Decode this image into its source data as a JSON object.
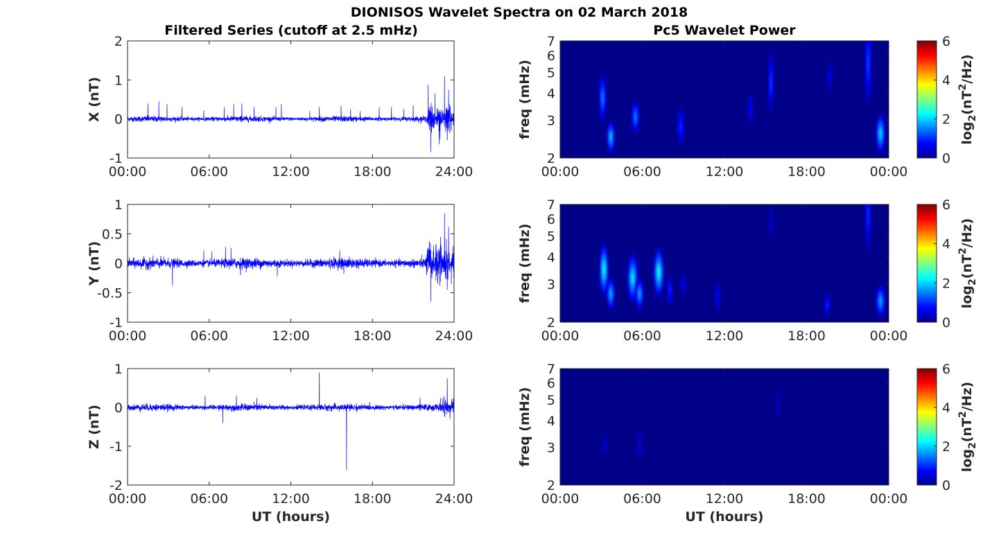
{
  "figure": {
    "title": "DIONISOS Wavelet Spectra on 02 March 2018",
    "left_title": "Filtered Series (cutoff at 2.5 mHz)",
    "right_title": "Pc5 Wavelet Power"
  },
  "chart_data": [
    {
      "type": "line",
      "panel": "X",
      "ylabel": "X (nT)",
      "xlabel": "",
      "xlim": [
        0,
        24
      ],
      "ylim": [
        -1,
        2
      ],
      "yticks": [
        -1,
        0,
        1,
        2
      ],
      "ytick_labels": [
        "-1",
        "0",
        "1",
        "2"
      ],
      "xticks": [
        0,
        6,
        12,
        18,
        24
      ],
      "xtick_labels": [
        "00:00",
        "06:00",
        "12:00",
        "18:00",
        "24:00"
      ],
      "color": "#0000ff",
      "noise_amplitude": 0.05,
      "spikes": [
        [
          1.5,
          0.4
        ],
        [
          2.3,
          0.45
        ],
        [
          2.9,
          0.38
        ],
        [
          4.0,
          0.3
        ],
        [
          5.6,
          0.22
        ],
        [
          7.1,
          0.3
        ],
        [
          7.8,
          0.38
        ],
        [
          8.4,
          0.4
        ],
        [
          9.3,
          0.3
        ],
        [
          10.9,
          0.3
        ],
        [
          11.3,
          0.38
        ],
        [
          13.4,
          0.2
        ],
        [
          14.1,
          0.3
        ],
        [
          15.7,
          0.34
        ],
        [
          16.4,
          0.25
        ],
        [
          17.1,
          0.2
        ],
        [
          18.5,
          0.3
        ],
        [
          19.4,
          0.3
        ],
        [
          20.3,
          0.25
        ],
        [
          21.0,
          0.35
        ],
        [
          22.1,
          0.88
        ],
        [
          22.3,
          -0.85
        ],
        [
          22.6,
          0.65
        ],
        [
          22.9,
          -0.65
        ],
        [
          23.3,
          1.1
        ],
        [
          23.5,
          -0.55
        ],
        [
          23.6,
          0.75
        ],
        [
          23.8,
          -0.3
        ]
      ],
      "burst": {
        "start": 22.0,
        "end": 24.0,
        "amplitude": 0.3
      }
    },
    {
      "type": "line",
      "panel": "Y",
      "ylabel": "Y (nT)",
      "xlabel": "",
      "xlim": [
        0,
        24
      ],
      "ylim": [
        -1,
        1
      ],
      "yticks": [
        -1,
        -0.5,
        0,
        0.5,
        1
      ],
      "ytick_labels": [
        "-1",
        "-0.5",
        "0",
        "0.5",
        "1"
      ],
      "xticks": [
        0,
        6,
        12,
        18,
        24
      ],
      "xtick_labels": [
        "00:00",
        "06:00",
        "12:00",
        "18:00",
        "24:00"
      ],
      "color": "#0000ff",
      "noise_amplitude": 0.06,
      "spikes": [
        [
          3.3,
          -0.38
        ],
        [
          5.6,
          0.22
        ],
        [
          6.2,
          0.2
        ],
        [
          7.2,
          0.28
        ],
        [
          7.6,
          0.26
        ],
        [
          8.3,
          -0.2
        ],
        [
          11.0,
          -0.22
        ],
        [
          15.6,
          0.22
        ],
        [
          15.9,
          -0.18
        ],
        [
          22.1,
          0.2
        ],
        [
          22.3,
          -0.65
        ],
        [
          22.5,
          0.3
        ],
        [
          22.8,
          -0.35
        ],
        [
          23.0,
          0.45
        ],
        [
          23.3,
          0.85
        ],
        [
          23.5,
          -0.45
        ],
        [
          23.6,
          0.62
        ],
        [
          23.8,
          -0.35
        ]
      ],
      "burst": {
        "start": 21.9,
        "end": 24.0,
        "amplitude": 0.25
      }
    },
    {
      "type": "line",
      "panel": "Z",
      "ylabel": "Z (nT)",
      "xlabel": "UT (hours)",
      "xlim": [
        0,
        24
      ],
      "ylim": [
        -2,
        1
      ],
      "yticks": [
        -2,
        -1,
        0,
        1
      ],
      "ytick_labels": [
        "-2",
        "-1",
        "0",
        "1"
      ],
      "xticks": [
        0,
        6,
        12,
        18,
        24
      ],
      "xtick_labels": [
        "00:00",
        "06:00",
        "12:00",
        "18:00",
        "24:00"
      ],
      "color": "#0000ff",
      "noise_amplitude": 0.06,
      "spikes": [
        [
          5.7,
          0.3
        ],
        [
          7.0,
          -0.4
        ],
        [
          8.0,
          0.3
        ],
        [
          9.5,
          0.25
        ],
        [
          14.1,
          0.9
        ],
        [
          16.1,
          -1.62
        ],
        [
          21.5,
          0.25
        ],
        [
          23.0,
          0.25
        ],
        [
          23.5,
          0.75
        ],
        [
          23.7,
          -0.3
        ]
      ],
      "burst": {
        "start": 23.0,
        "end": 24.0,
        "amplitude": 0.12
      }
    },
    {
      "type": "heatmap",
      "panel": "X",
      "ylabel": "freq (mHz)",
      "xlabel": "",
      "xlim": [
        0,
        24
      ],
      "ylim": [
        2,
        7
      ],
      "yscale": "log",
      "yticks": [
        2,
        3,
        4,
        5,
        6,
        7
      ],
      "ytick_labels": [
        "2",
        "3",
        "4",
        "5",
        "6",
        "7"
      ],
      "xticks": [
        0,
        6,
        12,
        18,
        24
      ],
      "xtick_labels": [
        "00:00",
        "06:00",
        "12:00",
        "18:00",
        "00:00"
      ],
      "colorbar": {
        "label": "log2(nT2/Hz)",
        "min": 0,
        "max": 6,
        "ticks": [
          "0",
          "2",
          "4",
          "6"
        ]
      },
      "blobs": [
        {
          "t": 3.1,
          "f": 3.8,
          "dt": 0.09,
          "df": 0.12,
          "v": 1.6
        },
        {
          "t": 3.7,
          "f": 2.5,
          "dt": 0.1,
          "df": 0.08,
          "v": 2.0
        },
        {
          "t": 5.5,
          "f": 3.1,
          "dt": 0.1,
          "df": 0.08,
          "v": 1.6
        },
        {
          "t": 8.8,
          "f": 2.8,
          "dt": 0.1,
          "df": 0.1,
          "v": 1.0
        },
        {
          "t": 13.9,
          "f": 3.4,
          "dt": 0.06,
          "df": 0.08,
          "v": 0.8
        },
        {
          "t": 15.4,
          "f": 4.5,
          "dt": 0.06,
          "df": 0.16,
          "v": 1.2
        },
        {
          "t": 19.7,
          "f": 4.8,
          "dt": 0.06,
          "df": 0.1,
          "v": 0.6
        },
        {
          "t": 22.5,
          "f": 5.5,
          "dt": 0.08,
          "df": 0.24,
          "v": 1.2
        },
        {
          "t": 23.4,
          "f": 2.6,
          "dt": 0.12,
          "df": 0.1,
          "v": 2.1
        }
      ]
    },
    {
      "type": "heatmap",
      "panel": "Y",
      "ylabel": "freq (mHz)",
      "xlabel": "",
      "xlim": [
        0,
        24
      ],
      "ylim": [
        2,
        7
      ],
      "yscale": "log",
      "yticks": [
        2,
        3,
        4,
        5,
        6,
        7
      ],
      "ytick_labels": [
        "2",
        "3",
        "4",
        "5",
        "6",
        "7"
      ],
      "xticks": [
        0,
        6,
        12,
        18,
        24
      ],
      "xtick_labels": [
        "00:00",
        "06:00",
        "12:00",
        "18:00",
        "00:00"
      ],
      "colorbar": {
        "label": "log2(nT2/Hz)",
        "min": 0,
        "max": 6,
        "ticks": [
          "0",
          "2",
          "4",
          "6"
        ]
      },
      "blobs": [
        {
          "t": 3.2,
          "f": 3.5,
          "dt": 0.12,
          "df": 0.13,
          "v": 2.4
        },
        {
          "t": 3.7,
          "f": 2.7,
          "dt": 0.1,
          "df": 0.08,
          "v": 1.9
        },
        {
          "t": 5.3,
          "f": 3.2,
          "dt": 0.15,
          "df": 0.12,
          "v": 2.2
        },
        {
          "t": 5.8,
          "f": 2.7,
          "dt": 0.1,
          "df": 0.08,
          "v": 1.8
        },
        {
          "t": 7.2,
          "f": 3.4,
          "dt": 0.14,
          "df": 0.12,
          "v": 2.4
        },
        {
          "t": 8.0,
          "f": 2.8,
          "dt": 0.06,
          "df": 0.08,
          "v": 1.0
        },
        {
          "t": 9.0,
          "f": 3.0,
          "dt": 0.06,
          "df": 0.06,
          "v": 0.7
        },
        {
          "t": 11.5,
          "f": 2.6,
          "dt": 0.06,
          "df": 0.08,
          "v": 0.8
        },
        {
          "t": 15.4,
          "f": 5.8,
          "dt": 0.04,
          "df": 0.1,
          "v": 0.5
        },
        {
          "t": 19.5,
          "f": 2.4,
          "dt": 0.08,
          "df": 0.06,
          "v": 1.0
        },
        {
          "t": 22.5,
          "f": 6.2,
          "dt": 0.06,
          "df": 0.2,
          "v": 1.1
        },
        {
          "t": 23.4,
          "f": 2.5,
          "dt": 0.12,
          "df": 0.08,
          "v": 1.8
        }
      ]
    },
    {
      "type": "heatmap",
      "panel": "Z",
      "ylabel": "freq (mHz)",
      "xlabel": "UT (hours)",
      "xlim": [
        0,
        24
      ],
      "ylim": [
        2,
        7
      ],
      "yscale": "log",
      "yticks": [
        2,
        3,
        4,
        5,
        6,
        7
      ],
      "ytick_labels": [
        "2",
        "3",
        "4",
        "5",
        "6",
        "7"
      ],
      "xticks": [
        0,
        6,
        12,
        18,
        24
      ],
      "xtick_labels": [
        "00:00",
        "06:00",
        "12:00",
        "18:00",
        "00:00"
      ],
      "colorbar": {
        "label": "log2(nT2/Hz)",
        "min": 0,
        "max": 6,
        "ticks": [
          "0",
          "2",
          "4",
          "6"
        ]
      },
      "blobs": [
        {
          "t": 3.3,
          "f": 3.1,
          "dt": 0.05,
          "df": 0.06,
          "v": 0.5
        },
        {
          "t": 5.8,
          "f": 3.1,
          "dt": 0.05,
          "df": 0.08,
          "v": 0.6
        },
        {
          "t": 15.9,
          "f": 4.8,
          "dt": 0.04,
          "df": 0.1,
          "v": 0.4
        }
      ]
    }
  ]
}
